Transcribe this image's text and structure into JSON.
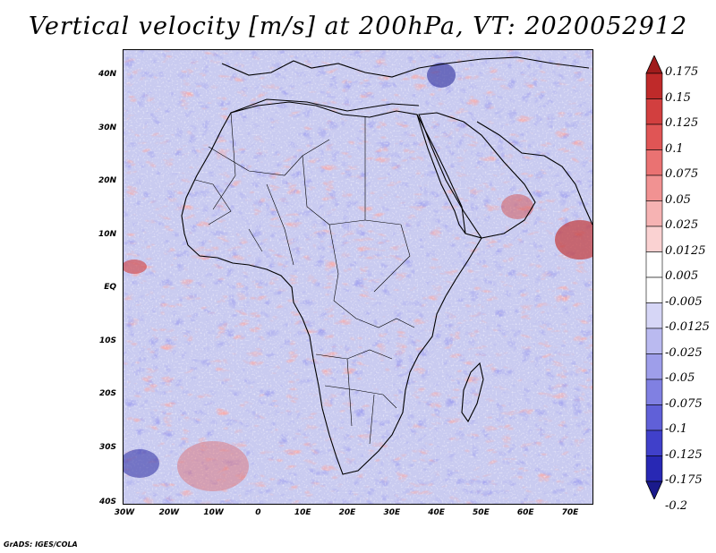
{
  "title": "Vertical velocity [m/s] at 200hPa, VT: 2020052912",
  "credit": "GrADS: IGES/COLA",
  "map": {
    "region": "Africa",
    "latitude_labels": [
      "40N",
      "30N",
      "20N",
      "10N",
      "EQ",
      "10S",
      "20S",
      "30S",
      "40S"
    ],
    "longitude_labels": [
      "30W",
      "20W",
      "10W",
      "0",
      "10E",
      "20E",
      "30E",
      "40E",
      "50E",
      "60E",
      "70E"
    ]
  },
  "colorbar": {
    "levels": [
      "0.175",
      "0.15",
      "0.125",
      "0.1",
      "0.075",
      "0.05",
      "0.025",
      "0.0125",
      "0.005",
      "-0.005",
      "-0.0125",
      "-0.025",
      "-0.05",
      "-0.075",
      "-0.1",
      "-0.125",
      "-0.175",
      "-0.2"
    ],
    "colors": [
      "#a01c1c",
      "#bf2a2a",
      "#d23f3f",
      "#e05555",
      "#ea7272",
      "#f19292",
      "#f6b3b3",
      "#fad2d2",
      "#ffffff",
      "#ffffff",
      "#d6d6f6",
      "#babaf0",
      "#9e9eea",
      "#8080e2",
      "#6060d8",
      "#4040ca",
      "#2828b4",
      "#1a1a8c"
    ]
  }
}
